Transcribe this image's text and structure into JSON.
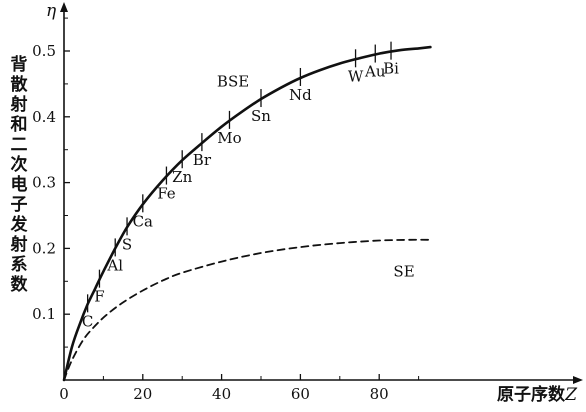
{
  "chart_data": {
    "type": "line",
    "x_symbol": "Z",
    "y_symbol": "η",
    "xlabel": "原子序数",
    "ylabel": "背散射和二次电子发射系数",
    "xlim": [
      0,
      95
    ],
    "ylim": [
      0,
      0.55
    ],
    "x_ticks": [
      0,
      20,
      40,
      60,
      80
    ],
    "y_ticks": [
      0.1,
      0.2,
      0.3,
      0.4,
      0.5
    ],
    "x_tick_labels": [
      "0",
      "20",
      "40",
      "60",
      "80"
    ],
    "y_tick_labels": [
      "0.1",
      "0.2",
      "0.3",
      "0.4",
      "0.5"
    ],
    "series": [
      {
        "name": "BSE",
        "style": "solid",
        "x": [
          0,
          2,
          4,
          6,
          8,
          10,
          13,
          16,
          20,
          25,
          30,
          35,
          40,
          45,
          50,
          55,
          60,
          65,
          70,
          75,
          80,
          85,
          90,
          93
        ],
        "y": [
          0,
          0.05,
          0.085,
          0.115,
          0.14,
          0.165,
          0.2,
          0.232,
          0.267,
          0.303,
          0.334,
          0.36,
          0.385,
          0.407,
          0.427,
          0.444,
          0.459,
          0.471,
          0.481,
          0.489,
          0.496,
          0.501,
          0.504,
          0.506
        ]
      },
      {
        "name": "SE",
        "style": "dashed",
        "x": [
          0,
          2,
          5,
          8,
          11,
          15,
          20,
          25,
          30,
          40,
          50,
          60,
          70,
          80,
          88,
          93
        ],
        "y": [
          0,
          0.03,
          0.062,
          0.083,
          0.1,
          0.118,
          0.136,
          0.151,
          0.163,
          0.18,
          0.193,
          0.202,
          0.208,
          0.212,
          0.213,
          0.213
        ]
      }
    ],
    "elements": [
      {
        "symbol": "C",
        "z": 6
      },
      {
        "symbol": "F",
        "z": 9
      },
      {
        "symbol": "Al",
        "z": 13
      },
      {
        "symbol": "S",
        "z": 16
      },
      {
        "symbol": "Ca",
        "z": 20
      },
      {
        "symbol": "Fe",
        "z": 26
      },
      {
        "symbol": "Zn",
        "z": 30
      },
      {
        "symbol": "Br",
        "z": 35
      },
      {
        "symbol": "Mo",
        "z": 42
      },
      {
        "symbol": "Sn",
        "z": 50
      },
      {
        "symbol": "Nd",
        "z": 60
      },
      {
        "symbol": "W",
        "z": 74
      },
      {
        "symbol": "Au",
        "z": 79
      },
      {
        "symbol": "Bi",
        "z": 83
      }
    ]
  }
}
